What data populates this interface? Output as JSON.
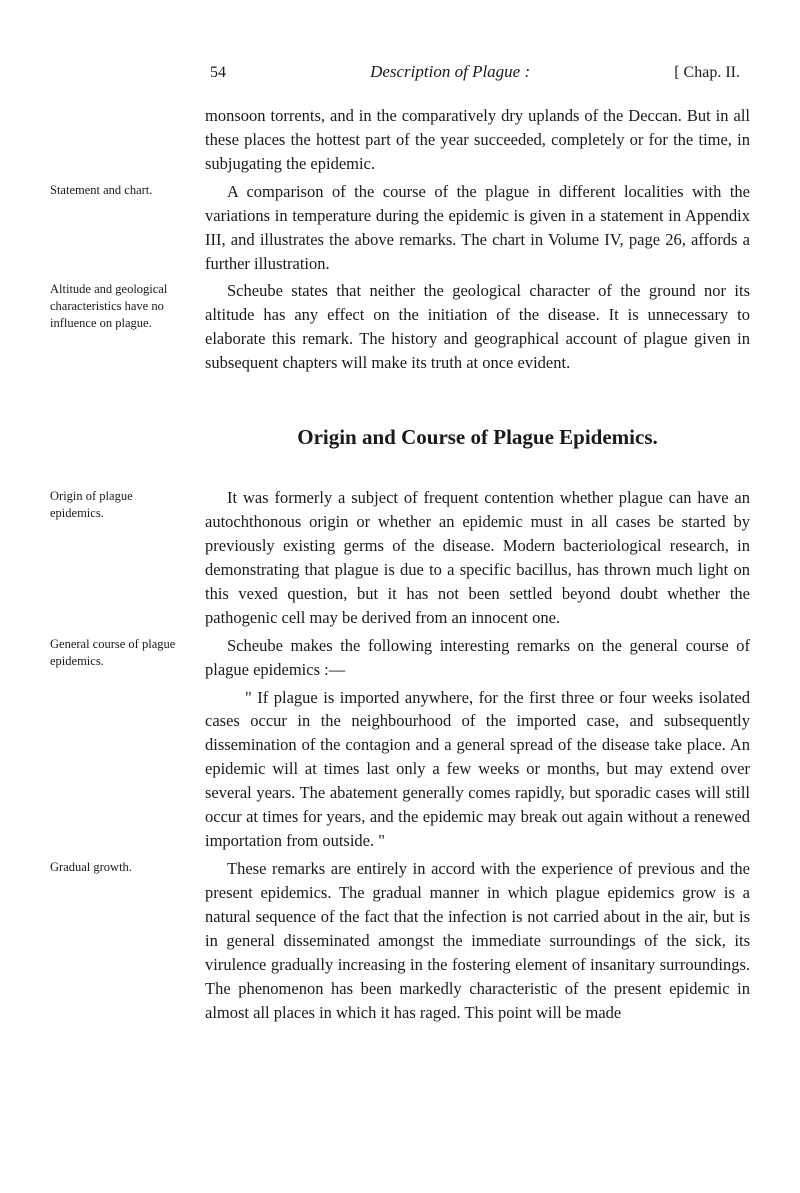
{
  "header": {
    "page_number": "54",
    "title": "Description of Plague :",
    "chapter": "[ Chap. II."
  },
  "paragraphs": {
    "p1": {
      "margin": "",
      "text": "monsoon torrents, and in the comparatively dry uplands of the Deccan. But in all these places the hottest part of the year succeeded, completely or for the time, in subjugating the epidemic."
    },
    "p2": {
      "margin": "Statement and chart.",
      "text": "A comparison of the course of the plague in different localities with the variations in temperature during the epidemic is given in a statement in Appendix III, and illustrates the above remarks. The chart in Volume IV, page 26, affords a further illustration."
    },
    "p3": {
      "margin": "Altitude and geological characteristics have no influence on plague.",
      "text": "Scheube states that neither the geological character of the ground nor its altitude has any effect on the initiation of the disease. It is unnecessary to elaborate this remark. The history and geographical account of plague given in subsequent chapters will make its truth at once evident."
    }
  },
  "section_heading": "Origin and Course of Plague Epidemics.",
  "section2": {
    "p4": {
      "margin": "Origin of plague epidemics.",
      "text": "It was formerly a subject of frequent contention whether plague can have an autochthonous origin or whether an epidemic must in all cases be started by previously existing germs of the disease. Modern bacteriological research, in demonstrating that plague is due to a specific bacillus, has thrown much light on this vexed question, but it has not been settled beyond doubt whether the pathogenic cell may be derived from an innocent one."
    },
    "p5": {
      "margin": "General course of plague epidemics.",
      "text": "Scheube makes the following interesting remarks on the general course of plague epidemics :—"
    },
    "p6": {
      "margin": "",
      "text": "\" If plague is imported anywhere, for the first three or four weeks isolated cases occur in the neighbourhood of the imported case, and subsequently dissemination of the contagion and a general spread of the disease take place. An epidemic will at times last only a few weeks or months, but may extend over several years. The abatement generally comes rapidly, but sporadic cases will still occur at times for years, and the epidemic may break out again without a renewed importation from outside. \""
    },
    "p7": {
      "margin": "Gradual growth.",
      "text": "These remarks are entirely in accord with the experience of previous and the present epidemics. The gradual manner in which plague epidemics grow is a natural sequence of the fact that the infection is not carried about in the air, but is in general disseminated amongst the immediate surroundings of the sick, its virulence gradually increasing in the fostering element of insanitary surroundings. The phenomenon has been markedly characteristic of the present epidemic in almost all places in which it has raged. This point will be made"
    }
  }
}
